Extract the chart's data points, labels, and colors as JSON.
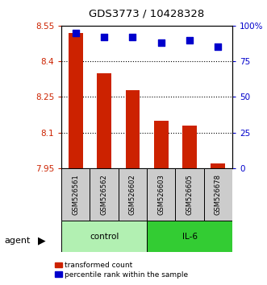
{
  "title": "GDS3773 / 10428328",
  "samples": [
    "GSM526561",
    "GSM526562",
    "GSM526602",
    "GSM526603",
    "GSM526605",
    "GSM526678"
  ],
  "red_values": [
    8.52,
    8.35,
    8.28,
    8.15,
    8.13,
    7.97
  ],
  "blue_values": [
    95,
    92,
    92,
    88,
    90,
    85
  ],
  "ylim_left": [
    7.95,
    8.55
  ],
  "ylim_right": [
    0,
    100
  ],
  "yticks_left": [
    7.95,
    8.1,
    8.25,
    8.4,
    8.55
  ],
  "yticks_right": [
    0,
    25,
    50,
    75,
    100
  ],
  "ytick_labels_left": [
    "7.95",
    "8.1",
    "8.25",
    "8.4",
    "8.55"
  ],
  "ytick_labels_right": [
    "0",
    "25",
    "50",
    "75",
    "100%"
  ],
  "groups": [
    {
      "label": "control",
      "indices": [
        0,
        1,
        2
      ],
      "color": "#b2f0b2"
    },
    {
      "label": "IL-6",
      "indices": [
        3,
        4,
        5
      ],
      "color": "#33cc33"
    }
  ],
  "bar_color": "#cc2200",
  "dot_color": "#0000cc",
  "bar_width": 0.5,
  "dot_size": 28,
  "background_color": "#ffffff",
  "sample_box_color": "#cccccc",
  "agent_label": "agent",
  "legend_red_label": "transformed count",
  "legend_blue_label": "percentile rank within the sample",
  "grid_yticks": [
    8.1,
    8.25,
    8.4
  ]
}
